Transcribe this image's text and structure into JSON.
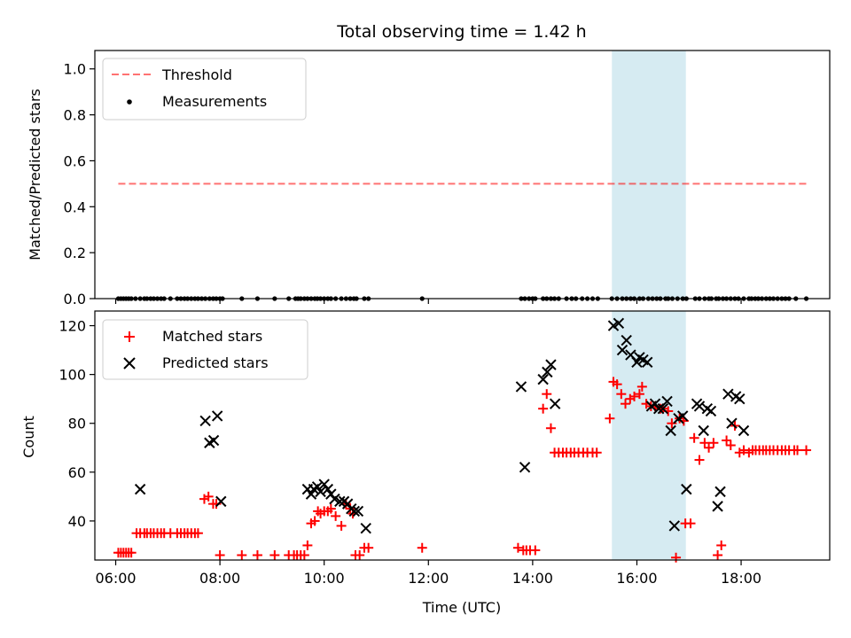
{
  "chart_data": {
    "type": "scatter",
    "title": "Total observing time = 1.42 h",
    "xlabel": "Time (UTC)",
    "xlim": [
      5.6,
      19.7
    ],
    "xticks": [
      6,
      8,
      10,
      12,
      14,
      16,
      18
    ],
    "xtick_labels": [
      "06:00",
      "08:00",
      "10:00",
      "12:00",
      "14:00",
      "16:00",
      "18:00"
    ],
    "highlight_span": {
      "x0": 15.52,
      "x1": 16.94,
      "color": "#add8e6"
    },
    "panels": [
      {
        "name": "ratio",
        "ylabel": "Matched/Predicted stars",
        "ylim": [
          0,
          1.08
        ],
        "yticks": [
          0.0,
          0.2,
          0.4,
          0.6,
          0.8,
          1.0
        ],
        "ytick_labels": [
          "0.0",
          "0.2",
          "0.4",
          "0.6",
          "0.8",
          "1.0"
        ],
        "legend_position": "upper-left",
        "threshold": {
          "name": "Threshold",
          "value": 0.5,
          "x0": 6.05,
          "x1": 19.25,
          "color": "#ff0000"
        },
        "series": [
          {
            "name": "Measurements",
            "marker": "dot",
            "color": "#000000",
            "x": [
              6.05,
              6.1,
              6.15,
              6.2,
              6.25,
              6.3,
              6.38,
              6.47,
              6.55,
              6.6,
              6.67,
              6.73,
              6.8,
              6.87,
              6.93,
              7.05,
              7.18,
              7.25,
              7.32,
              7.38,
              7.45,
              7.52,
              7.58,
              7.65,
              7.72,
              7.8,
              7.87,
              7.93,
              8.0,
              8.05,
              8.42,
              8.72,
              9.05,
              9.32,
              9.45,
              9.5,
              9.55,
              9.62,
              9.68,
              9.75,
              9.82,
              9.87,
              9.93,
              10.0,
              10.07,
              10.13,
              10.22,
              10.33,
              10.42,
              10.5,
              10.57,
              10.62,
              10.77,
              10.85,
              11.88,
              13.78,
              13.85,
              13.93,
              14.0,
              14.05,
              14.2,
              14.27,
              14.35,
              14.42,
              14.5,
              14.65,
              14.75,
              14.83,
              14.95,
              15.05,
              15.15,
              15.25,
              15.52,
              15.62,
              15.72,
              15.8,
              15.88,
              15.95,
              16.05,
              16.12,
              16.22,
              16.3,
              16.38,
              16.45,
              16.55,
              16.6,
              16.68,
              16.78,
              16.88,
              16.95,
              17.12,
              17.2,
              17.3,
              17.38,
              17.43,
              17.52,
              17.57,
              17.65,
              17.72,
              17.8,
              17.88,
              17.95,
              18.05,
              18.15,
              18.2,
              18.27,
              18.33,
              18.4,
              18.48,
              18.55,
              18.62,
              18.7,
              18.78,
              18.85,
              18.92,
              19.05,
              19.25
            ],
            "y": [
              0.0,
              0.0,
              0.0,
              0.0,
              0.0,
              0.0,
              0.0,
              0.0,
              0.0,
              0.0,
              0.0,
              0.0,
              0.0,
              0.0,
              0.0,
              0.0,
              0.0,
              0.0,
              0.0,
              0.0,
              0.0,
              0.0,
              0.0,
              0.0,
              0.0,
              0.0,
              0.0,
              0.0,
              0.0,
              0.0,
              0.0,
              0.0,
              0.0,
              0.0,
              0.0,
              0.0,
              0.0,
              0.0,
              0.0,
              0.0,
              0.0,
              0.0,
              0.0,
              0.0,
              0.0,
              0.0,
              0.0,
              0.0,
              0.0,
              0.0,
              0.0,
              0.0,
              0.0,
              0.0,
              0.0,
              0.0,
              0.0,
              0.0,
              0.0,
              0.0,
              0.0,
              0.0,
              0.0,
              0.0,
              0.0,
              0.0,
              0.0,
              0.0,
              0.0,
              0.0,
              0.0,
              0.0,
              0.0,
              0.0,
              0.0,
              0.0,
              0.0,
              0.0,
              0.0,
              0.0,
              0.0,
              0.0,
              0.0,
              0.0,
              0.0,
              0.0,
              0.0,
              0.0,
              0.0,
              0.0,
              0.0,
              0.0,
              0.0,
              0.0,
              0.0,
              0.0,
              0.0,
              0.0,
              0.0,
              0.0,
              0.0,
              0.0,
              0.0,
              0.0,
              0.0,
              0.0,
              0.0,
              0.0,
              0.0,
              0.0,
              0.0,
              0.0,
              0.0,
              0.0,
              0.0,
              0.0,
              0.0
            ]
          }
        ]
      },
      {
        "name": "count",
        "ylabel": "Count",
        "ylim": [
          24,
          126
        ],
        "yticks": [
          40,
          60,
          80,
          100,
          120
        ],
        "ytick_labels": [
          "40",
          "60",
          "80",
          "100",
          "120"
        ],
        "legend_position": "upper-left",
        "series": [
          {
            "name": "Matched stars",
            "marker": "plus",
            "color": "#ff0000",
            "x": [
              6.05,
              6.1,
              6.15,
              6.2,
              6.25,
              6.3,
              6.4,
              6.47,
              6.55,
              6.6,
              6.67,
              6.73,
              6.8,
              6.87,
              6.93,
              7.05,
              7.18,
              7.25,
              7.32,
              7.38,
              7.45,
              7.52,
              7.58,
              7.7,
              7.78,
              7.87,
              7.93,
              8.0,
              8.42,
              8.72,
              9.05,
              9.32,
              9.42,
              9.48,
              9.55,
              9.62,
              9.68,
              9.75,
              9.82,
              9.88,
              9.93,
              10.0,
              10.07,
              10.13,
              10.22,
              10.33,
              10.42,
              10.5,
              10.55,
              10.6,
              10.68,
              10.77,
              10.85,
              11.88,
              13.72,
              13.82,
              13.88,
              13.95,
              14.05,
              14.2,
              14.27,
              14.35,
              14.42,
              14.5,
              14.58,
              14.65,
              14.73,
              14.8,
              14.88,
              14.97,
              15.05,
              15.15,
              15.23,
              15.48,
              15.55,
              15.62,
              15.7,
              15.78,
              15.87,
              15.95,
              16.05,
              16.1,
              16.18,
              16.27,
              16.35,
              16.45,
              16.5,
              16.6,
              16.67,
              16.75,
              16.82,
              16.9,
              16.93,
              17.03,
              17.1,
              17.2,
              17.3,
              17.38,
              17.47,
              17.55,
              17.62,
              17.72,
              17.8,
              17.88,
              17.97,
              18.05,
              18.15,
              18.22,
              18.28,
              18.35,
              18.42,
              18.48,
              18.55,
              18.62,
              18.7,
              18.78,
              18.85,
              18.92,
              19.02,
              19.08,
              19.25
            ],
            "y": [
              27,
              27,
              27,
              27,
              27,
              27,
              35,
              35,
              35,
              35,
              35,
              35,
              35,
              35,
              35,
              35,
              35,
              35,
              35,
              35,
              35,
              35,
              35,
              49,
              50,
              47,
              47,
              26,
              26,
              26,
              26,
              26,
              26,
              26,
              26,
              26,
              30,
              39,
              40,
              44,
              43,
              44,
              44,
              45,
              42,
              38,
              47,
              45,
              43,
              26,
              26,
              29,
              29,
              29,
              29,
              28,
              28,
              28,
              28,
              86,
              92,
              78,
              68,
              68,
              68,
              68,
              68,
              68,
              68,
              68,
              68,
              68,
              68,
              82,
              97,
              96,
              92,
              88,
              90,
              91,
              92,
              95,
              88,
              87,
              87,
              86,
              86,
              85,
              80,
              25,
              82,
              81,
              39,
              39,
              74,
              65,
              72,
              70,
              72,
              26,
              30,
              73,
              71,
              79,
              68,
              69,
              68,
              69,
              69,
              69,
              69,
              69,
              69,
              69,
              69,
              69,
              69,
              69,
              69,
              69,
              69
            ]
          },
          {
            "name": "Predicted stars",
            "marker": "x",
            "color": "#000000",
            "x": [
              6.47,
              7.72,
              7.8,
              7.88,
              7.95,
              8.02,
              9.68,
              9.75,
              9.8,
              9.87,
              9.93,
              10.0,
              10.07,
              10.13,
              10.2,
              10.3,
              10.38,
              10.45,
              10.52,
              10.58,
              10.65,
              10.8,
              13.78,
              13.85,
              14.2,
              14.28,
              14.35,
              14.43,
              15.55,
              15.65,
              15.72,
              15.8,
              15.88,
              16.0,
              16.05,
              16.12,
              16.2,
              16.28,
              16.35,
              16.42,
              16.5,
              16.58,
              16.65,
              16.72,
              16.8,
              16.88,
              16.95,
              17.15,
              17.2,
              17.28,
              17.35,
              17.42,
              17.55,
              17.6,
              17.75,
              17.82,
              17.9,
              17.97,
              18.05
            ],
            "y": [
              53,
              81,
              72,
              73,
              83,
              48,
              53,
              51,
              53,
              54,
              52,
              55,
              53,
              51,
              49,
              48,
              48,
              47,
              45,
              44,
              44,
              37,
              95,
              62,
              98,
              101,
              104,
              88,
              120,
              121,
              110,
              114,
              108,
              105,
              107,
              106,
              105,
              87,
              88,
              86,
              86,
              89,
              77,
              38,
              82,
              83,
              53,
              88,
              87,
              77,
              86,
              85,
              46,
              52,
              92,
              80,
              91,
              90,
              77
            ]
          }
        ]
      }
    ]
  }
}
